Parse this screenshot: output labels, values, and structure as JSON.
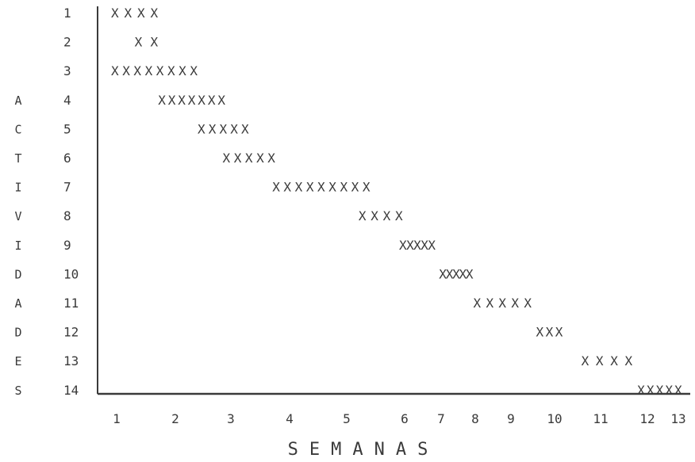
{
  "chart_data": {
    "type": "gantt",
    "title": "",
    "ylabel": "ACTIVIDADES",
    "xlabel": "SEMANAS",
    "mark_char": "X",
    "x_ticks": [
      "1",
      "2",
      "3",
      "4",
      "5",
      "6",
      "7",
      "8",
      "9",
      "10",
      "11",
      "12",
      "13"
    ],
    "xlim": [
      1,
      13.3
    ],
    "activities": [
      {
        "label": "1",
        "marks": "XXXX",
        "start": 1.0,
        "end": 1.8
      },
      {
        "label": "2",
        "marks": "XX",
        "start": 1.4,
        "end": 1.8
      },
      {
        "label": "3",
        "marks": "XXXXXXXX",
        "start": 1.0,
        "end": 2.5
      },
      {
        "label": "4",
        "marks": "XXXXXXX",
        "start": 1.8,
        "end": 3.0
      },
      {
        "label": "5",
        "marks": "XXXXX",
        "start": 2.5,
        "end": 3.4
      },
      {
        "label": "6",
        "marks": "XXXXX",
        "start": 2.95,
        "end": 3.85
      },
      {
        "label": "7",
        "marks": "XXXXXXXXX",
        "start": 3.8,
        "end": 5.5
      },
      {
        "label": "8",
        "marks": "XXXX",
        "start": 5.3,
        "end": 6.1
      },
      {
        "label": "9",
        "marks": "XXXXX",
        "start": 6.0,
        "end": 7.0
      },
      {
        "label": "10",
        "marks": "XXXXX",
        "start": 7.1,
        "end": 8.1
      },
      {
        "label": "11",
        "marks": "XXXXX",
        "start": 8.1,
        "end": 9.6
      },
      {
        "label": "12",
        "marks": "XXX",
        "start": 9.7,
        "end": 10.3
      },
      {
        "label": "13",
        "marks": "XXXX",
        "start": 10.7,
        "end": 11.8
      },
      {
        "label": "14",
        "marks": "XXXXX",
        "start": 11.9,
        "end": 13.3
      }
    ]
  },
  "colors": {
    "ink": "#3a3a3a",
    "axis": "#3a3a3a",
    "background": "#ffffff"
  }
}
